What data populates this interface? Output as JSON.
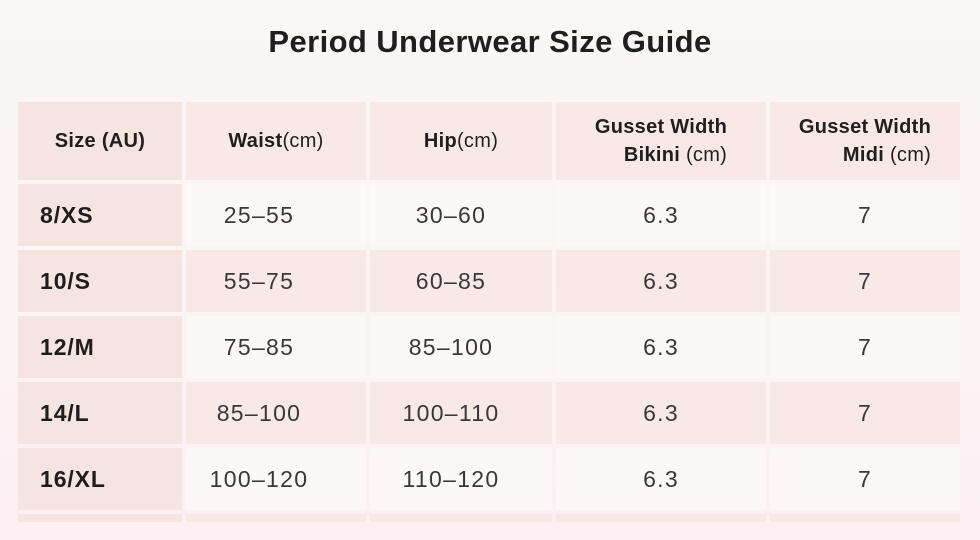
{
  "title": "Period Underwear Size Guide",
  "colors": {
    "page_bg_top": "#fbf7f6",
    "page_bg_bottom": "#fdeef4",
    "header_cell_pink": "#f8e9e6",
    "size_column_pink": "#f6e4e1",
    "row_shaded_pink": "#f8e9e6",
    "row_light": "#fcf8f7",
    "title_text": "#1f1f1f",
    "value_text": "#383838"
  },
  "header": {
    "col1": {
      "label": "Size (AU)"
    },
    "col2": {
      "label": "Waist",
      "unit": " (cm)"
    },
    "col3": {
      "label": "Hip",
      "unit": " (cm)"
    },
    "col4": {
      "line1": "Gusset Width",
      "label2": "Bikini",
      "unit": " (cm)"
    },
    "col5": {
      "line1": "Gusset Width",
      "label2": "Midi",
      "unit": " (cm)"
    }
  },
  "chart_data": {
    "type": "table",
    "title": "Period Underwear Size Guide",
    "columns": [
      "Size (AU)",
      "Waist (cm)",
      "Hip (cm)",
      "Gusset Width Bikini (cm)",
      "Gusset Width Midi (cm)"
    ],
    "rows": [
      [
        "8/XS",
        "25–55",
        "30–60",
        "6.3",
        "7"
      ],
      [
        "10/S",
        "55–75",
        "60–85",
        "6.3",
        "7"
      ],
      [
        "12/M",
        "75–85",
        "85–100",
        "6.3",
        "7"
      ],
      [
        "14/L",
        "85–100",
        "100–110",
        "6.3",
        "7"
      ],
      [
        "16/XL",
        "100–120",
        "110–120",
        "6.3",
        "7"
      ]
    ],
    "layout": {
      "striped": true,
      "grid": false,
      "partial_sixth_row_visible": true
    }
  }
}
